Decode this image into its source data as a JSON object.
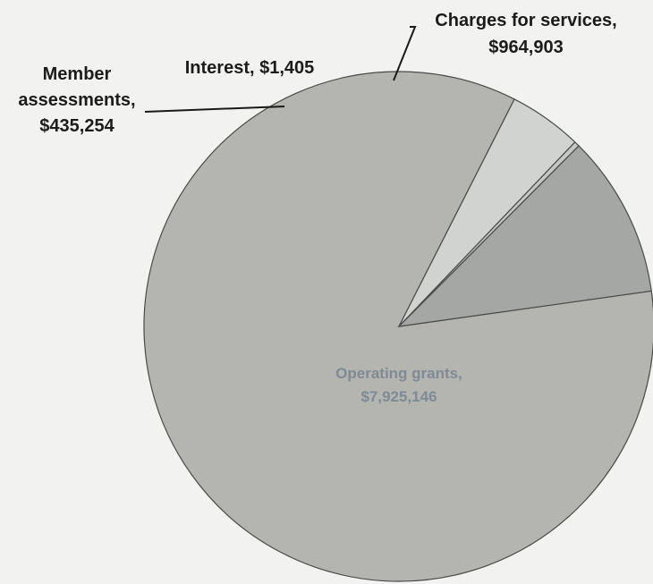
{
  "chart_data": {
    "type": "pie",
    "title": "",
    "slices": [
      {
        "key": "operating",
        "label_lines": [
          "Operating grants,",
          "$7,925,146"
        ],
        "category": "Operating grants",
        "value": 7925146,
        "color": "#b4b4b1"
      },
      {
        "key": "assessments",
        "label_lines": [
          "Member",
          "assessments,",
          "$435,254"
        ],
        "category": "Member assessments",
        "value": 435254,
        "color": "#d1d3d0"
      },
      {
        "key": "interest",
        "label_lines": [
          "Interest,  $1,405"
        ],
        "category": "Interest",
        "value": 1405,
        "color": "#c6c8c5"
      },
      {
        "key": "charges",
        "label_lines": [
          "Charges for services,",
          "$964,903"
        ],
        "category": "Charges for services",
        "value": 964903,
        "color": "#a5a7a5"
      }
    ]
  },
  "colors": {
    "background": "#f2f2f1",
    "label_text": "#1c1c1c",
    "inner_label_text": "#7f8b93",
    "slice_border": "#4a4a4a"
  }
}
